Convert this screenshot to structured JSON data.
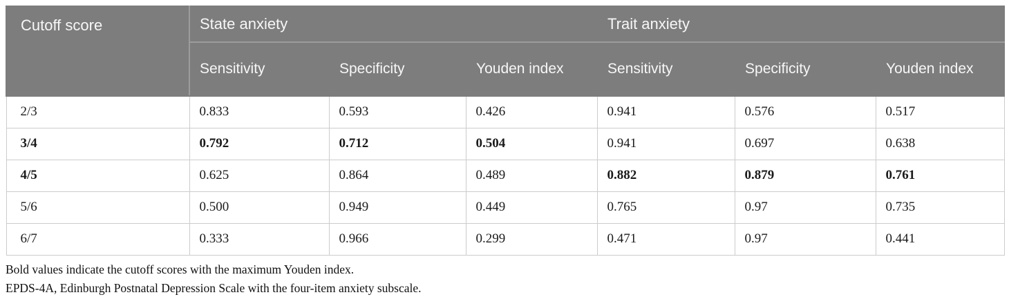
{
  "table": {
    "corner_header": "Cutoff score",
    "groups": [
      {
        "label": "State anxiety"
      },
      {
        "label": "Trait anxiety"
      }
    ],
    "sub_headers": [
      "Sensitivity",
      "Specificity",
      "Youden index",
      "Sensitivity",
      "Specificity",
      "Youden index"
    ],
    "rows": [
      {
        "cutoff": "2/3",
        "bold_label": false,
        "values": [
          "0.833",
          "0.593",
          "0.426",
          "0.941",
          "0.576",
          "0.517"
        ],
        "bold": [
          false,
          false,
          false,
          false,
          false,
          false
        ]
      },
      {
        "cutoff": "3/4",
        "bold_label": true,
        "values": [
          "0.792",
          "0.712",
          "0.504",
          "0.941",
          "0.697",
          "0.638"
        ],
        "bold": [
          true,
          true,
          true,
          false,
          false,
          false
        ]
      },
      {
        "cutoff": "4/5",
        "bold_label": true,
        "values": [
          "0.625",
          "0.864",
          "0.489",
          "0.882",
          "0.879",
          "0.761"
        ],
        "bold": [
          false,
          false,
          false,
          true,
          true,
          true
        ]
      },
      {
        "cutoff": "5/6",
        "bold_label": false,
        "values": [
          "0.500",
          "0.949",
          "0.449",
          "0.765",
          "0.97",
          "0.735"
        ],
        "bold": [
          false,
          false,
          false,
          false,
          false,
          false
        ]
      },
      {
        "cutoff": "6/7",
        "bold_label": false,
        "values": [
          "0.333",
          "0.966",
          "0.299",
          "0.471",
          "0.97",
          "0.441"
        ],
        "bold": [
          false,
          false,
          false,
          false,
          false,
          false
        ]
      }
    ]
  },
  "notes": [
    "Bold values indicate the cutoff scores with the maximum Youden index.",
    "EPDS-4A, Edinburgh Postnatal Depression Scale with the four-item anxiety subscale."
  ],
  "colors": {
    "header_bg": "#7d7d7d",
    "header_text": "#f7f7f7",
    "header_divider": "#9c9c9c",
    "cell_border": "#cccccc",
    "body_text": "#1a1a1a"
  }
}
